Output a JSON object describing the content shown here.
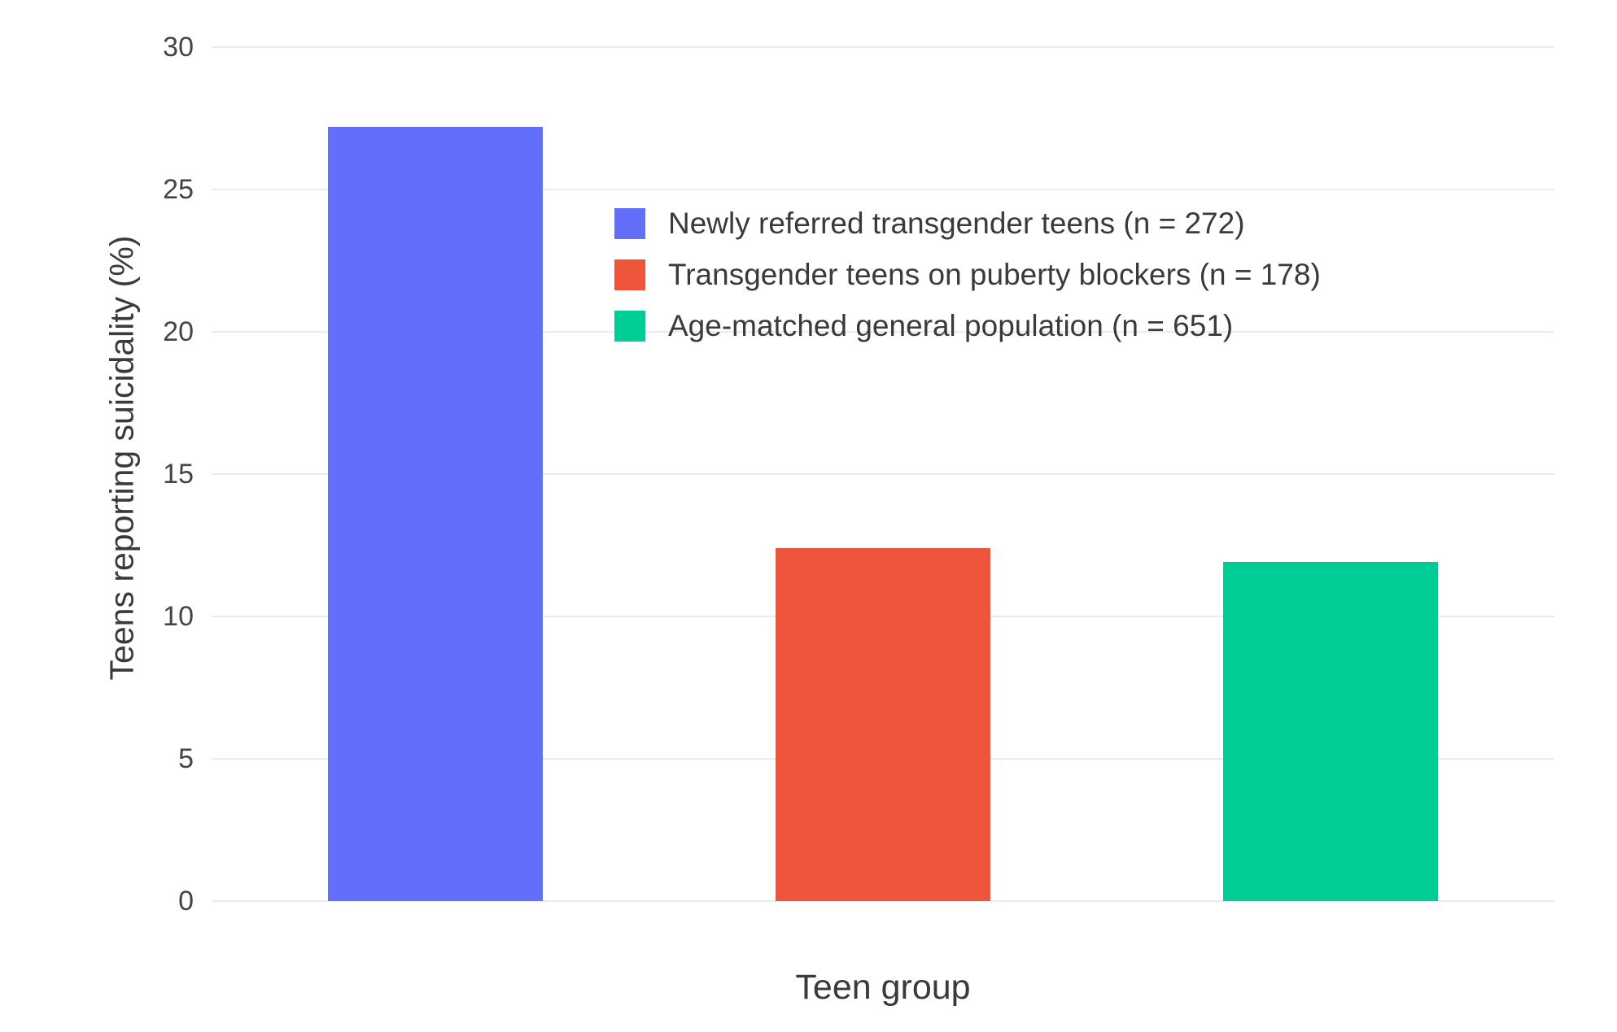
{
  "chart_data": {
    "type": "bar",
    "categories": [
      "Newly referred transgender teens (n = 272)",
      "Transgender teens on puberty blockers (n = 178)",
      "Age-matched general population (n = 651)"
    ],
    "values": [
      27.2,
      12.4,
      11.9
    ],
    "colors": [
      "#636EFA",
      "#EF553B",
      "#00CC96"
    ],
    "title": "",
    "xlabel": "Teen group",
    "ylabel": "Teens reporting suicidality (%)",
    "ylim": [
      0,
      30
    ],
    "yticks": [
      0,
      5,
      10,
      15,
      20,
      25,
      30
    ],
    "grid": true,
    "legend_position": "top-center-inside",
    "legend": [
      {
        "label": "Newly referred transgender teens (n = 272)",
        "color": "#636EFA"
      },
      {
        "label": "Transgender teens on puberty blockers (n = 178)",
        "color": "#EF553B"
      },
      {
        "label": "Age-matched general population (n = 651)",
        "color": "#00CC96"
      }
    ]
  }
}
